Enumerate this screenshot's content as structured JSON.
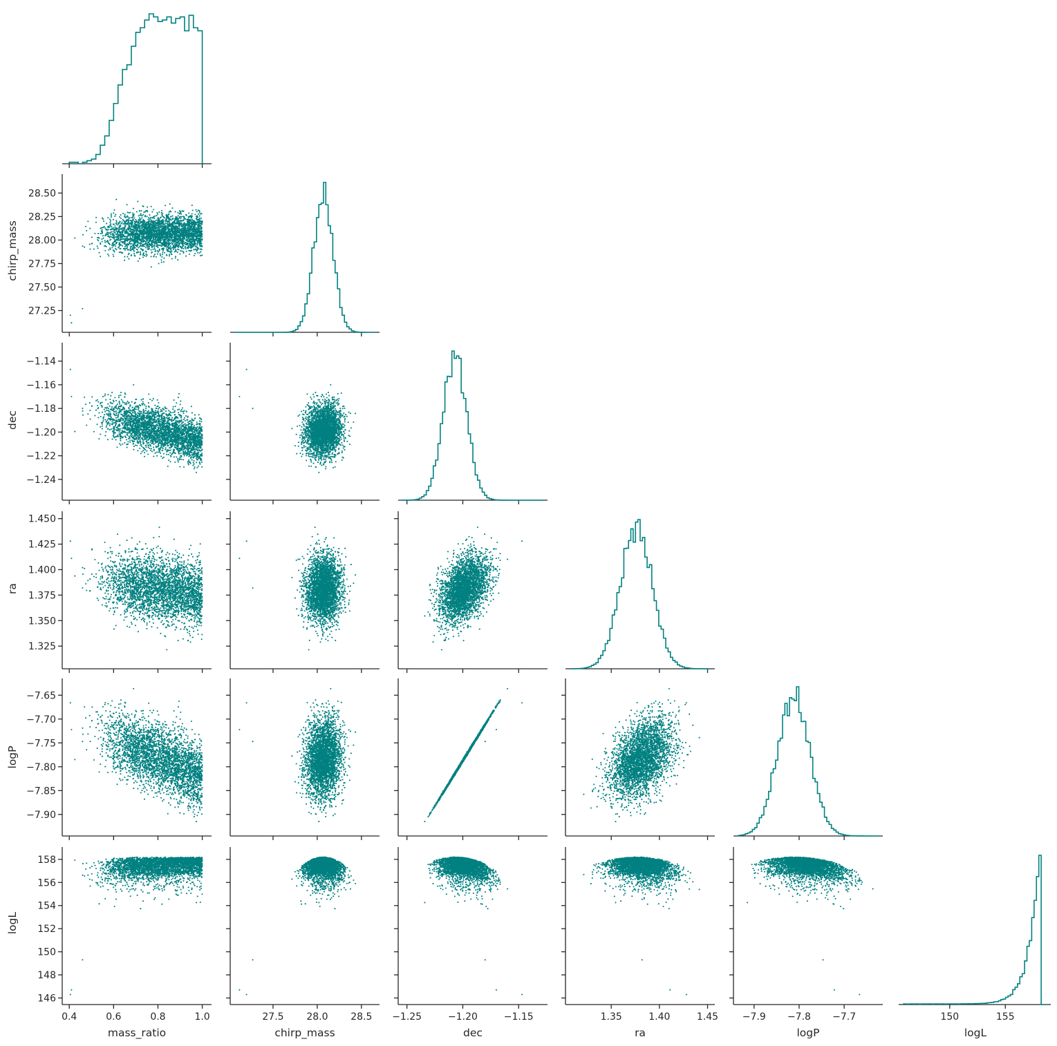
{
  "chart_data": {
    "type": "pairplot",
    "layout": "lower-triangle corner plot; diagonal = step histograms, off-diagonal = scatter",
    "color": "#008080",
    "grid": false,
    "variables": [
      {
        "name": "mass_ratio",
        "label": "mass_ratio",
        "range": [
          0.39,
          1.02
        ],
        "ticks": [
          0.4,
          0.6,
          0.8,
          1.0
        ],
        "tick_labels": [
          "0.4",
          "0.6",
          "0.8",
          "1.0"
        ]
      },
      {
        "name": "chirp_mass",
        "label": "chirp_mass",
        "range": [
          27.07,
          28.65
        ],
        "ticks": [
          27.25,
          27.5,
          27.75,
          28.0,
          28.25,
          28.5
        ],
        "tick_labels": [
          "27.25",
          "27.50",
          "27.75",
          "28.00",
          "28.25",
          "28.50"
        ]
      },
      {
        "name": "dec",
        "label": "dec",
        "range": [
          -1.2535,
          -1.1285
        ],
        "ticks": [
          -1.24,
          -1.22,
          -1.2,
          -1.18,
          -1.16,
          -1.14
        ],
        "tick_labels": [
          "−1.24",
          "−1.22",
          "−1.20",
          "−1.18",
          "−1.16",
          "−1.14"
        ]
      },
      {
        "name": "ra",
        "label": "ra",
        "range": [
          1.3075,
          1.4525
        ],
        "ticks": [
          1.325,
          1.35,
          1.375,
          1.4,
          1.425,
          1.45
        ],
        "tick_labels": [
          "1.325",
          "1.350",
          "1.375",
          "1.400",
          "1.425",
          "1.450"
        ]
      },
      {
        "name": "logP",
        "label": "logP",
        "range": [
          -7.935,
          -7.625
        ],
        "ticks": [
          -7.9,
          -7.85,
          -7.8,
          -7.75,
          -7.7,
          -7.65
        ],
        "tick_labels": [
          "−7.90",
          "−7.85",
          "−7.80",
          "−7.75",
          "−7.70",
          "−7.65"
        ]
      },
      {
        "name": "logL",
        "label": "logL",
        "range": [
          145.85,
          158.65
        ],
        "ticks": [
          146,
          148,
          150,
          152,
          154,
          156,
          158
        ],
        "tick_labels": [
          "146",
          "148",
          "150",
          "152",
          "154",
          "156",
          "158"
        ]
      }
    ],
    "bottom_tick_labels": {
      "mass_ratio": {
        "ticks": [
          0.4,
          0.6,
          0.8,
          1.0
        ],
        "labels": [
          "0.4",
          "0.6",
          "0.8",
          "1.0"
        ]
      },
      "chirp_mass": {
        "ticks": [
          27.5,
          28.0,
          28.5
        ],
        "labels": [
          "27.5",
          "28.0",
          "28.5"
        ]
      },
      "dec": {
        "ticks": [
          -1.25,
          -1.2,
          -1.15
        ],
        "labels": [
          "−1.25",
          "−1.20",
          "−1.15"
        ]
      },
      "ra": {
        "ticks": [
          1.35,
          1.4,
          1.45
        ],
        "labels": [
          "1.35",
          "1.40",
          "1.45"
        ]
      },
      "logP": {
        "ticks": [
          -7.9,
          -7.8,
          -7.7
        ],
        "labels": [
          "−7.9",
          "−7.8",
          "−7.7"
        ]
      },
      "logL": {
        "ticks": [
          150,
          155
        ],
        "labels": [
          "150",
          "155"
        ]
      }
    },
    "histograms": {
      "mass_ratio": {
        "bins": [
          0.4,
          0.42,
          0.44,
          0.46,
          0.48,
          0.5,
          0.52,
          0.54,
          0.56,
          0.58,
          0.6,
          0.62,
          0.64,
          0.66,
          0.68,
          0.7,
          0.72,
          0.74,
          0.76,
          0.78,
          0.8,
          0.82,
          0.84,
          0.86,
          0.88,
          0.9,
          0.92,
          0.94,
          0.96,
          0.98,
          1.0
        ],
        "counts": [
          1,
          1,
          0,
          1,
          2,
          3,
          6,
          12,
          18,
          28,
          39,
          51,
          61,
          64,
          76,
          85,
          88,
          93,
          97,
          95,
          92,
          93,
          95,
          91,
          94,
          95,
          86,
          96,
          88,
          86
        ],
        "peak": 97
      },
      "chirp_mass": {
        "mean": 28.07,
        "sd": 0.11,
        "peak": 1.0
      },
      "dec": {
        "mean": -1.207,
        "sd": 0.0105,
        "peak": 1.0
      },
      "ra": {
        "mean": 1.376,
        "sd": 0.0165,
        "peak": 1.0
      },
      "logP": {
        "mean": -7.812,
        "sd": 0.036,
        "peak": 1.0
      },
      "logL": {
        "mode": 157.9,
        "max": 158.2,
        "shape": "left-skewed",
        "peak": 1.0
      }
    },
    "relations": {
      "dec_vs_mass_ratio": "dec decreases as mass_ratio rises (about -1.17 at 0.55 to -1.21 at 0.9)",
      "logP_vs_dec": "nearly perfect positive linear relation: logP ≈ -7.814 + 3.8*(dec + 1.207)",
      "ra_vs_dec": "positive correlation (~0.5)",
      "logL_vs_all": "logL bounded above near 158 with a dome-shaped cap and a long lower tail to ~146"
    }
  }
}
